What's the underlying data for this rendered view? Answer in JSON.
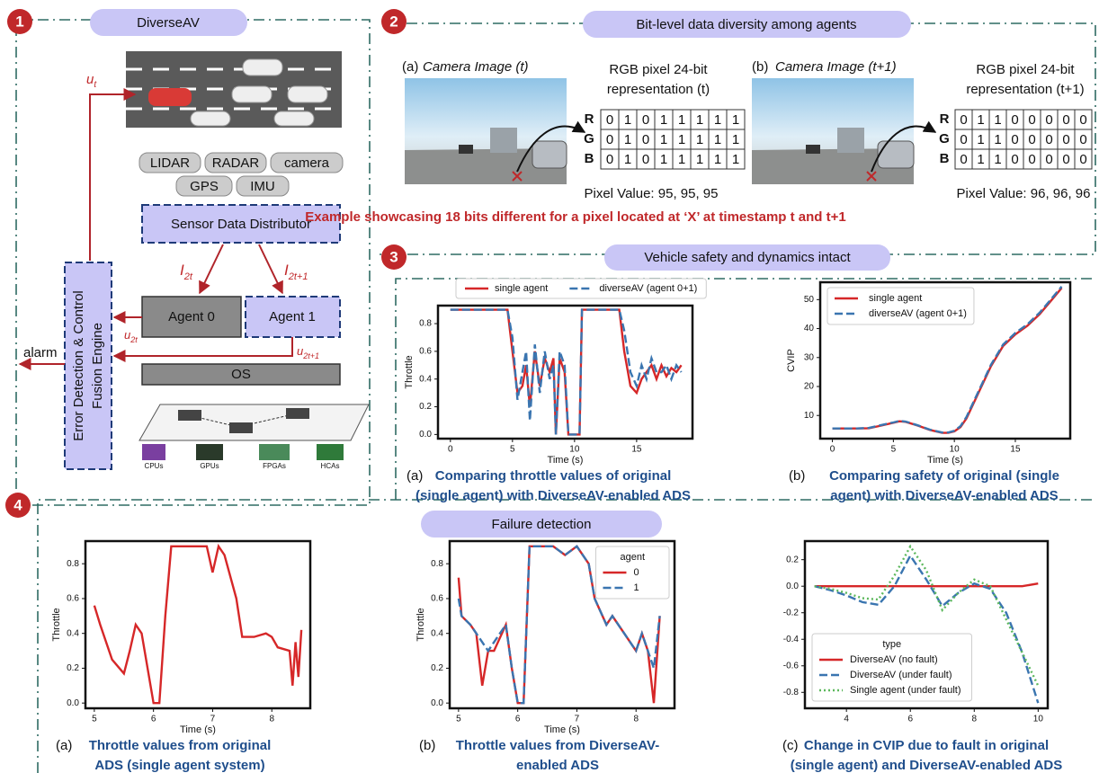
{
  "panel1": {
    "badge": "1",
    "title": "DiverseAV",
    "u_t": {
      "base": "u",
      "sub": "t"
    },
    "sensors": [
      "LIDAR",
      "RADAR",
      "camera",
      "GPS",
      "IMU"
    ],
    "distributor": "Sensor Data Distributor",
    "i_2t": {
      "base": "I",
      "sub": "2t"
    },
    "i_2t1": {
      "base": "I",
      "sub": "2t+1"
    },
    "agent0": "Agent 0",
    "agent1": "Agent 1",
    "u_2t": {
      "base": "u",
      "sub": "2t"
    },
    "u_2t1": {
      "base": "u",
      "sub": "2t+1"
    },
    "engine": [
      "Error Detection & Control",
      "Fusion Engine"
    ],
    "alarm": "alarm",
    "os": "OS",
    "hardware": [
      "CPUs",
      "GPUs",
      "FPGAs",
      "HCAs"
    ]
  },
  "panel2": {
    "badge": "2",
    "title": "Bit-level data diversity among agents",
    "a": {
      "label": "(a)",
      "image_caption": "Camera Image (t)",
      "repr": [
        "RGB pixel 24-bit",
        "representation (t)"
      ],
      "rows": [
        "R",
        "G",
        "B"
      ],
      "bits": [
        [
          0,
          1,
          0,
          1,
          1,
          1,
          1,
          1
        ],
        [
          0,
          1,
          0,
          1,
          1,
          1,
          1,
          1
        ],
        [
          0,
          1,
          0,
          1,
          1,
          1,
          1,
          1
        ]
      ],
      "pixel_value": "Pixel Value: 95, 95, 95"
    },
    "b": {
      "label": "(b)",
      "image_caption": "Camera Image (t+1)",
      "repr": [
        "RGB pixel 24-bit",
        "representation (t+1)"
      ],
      "rows": [
        "R",
        "G",
        "B"
      ],
      "bits": [
        [
          0,
          1,
          1,
          0,
          0,
          0,
          0,
          0
        ],
        [
          0,
          1,
          1,
          0,
          0,
          0,
          0,
          0
        ],
        [
          0,
          1,
          1,
          0,
          0,
          0,
          0,
          0
        ]
      ],
      "pixel_value": "Pixel Value: 96, 96, 96"
    },
    "caption": "Example showcasing 18 bits different for a pixel located at ‘X’ at timestamp t and t+1"
  },
  "panel3": {
    "badge": "3",
    "title": "Vehicle safety and dynamics intact"
  },
  "panel4": {
    "badge": "4",
    "title": "Failure detection"
  },
  "chart_data": [
    {
      "type": "line",
      "xlabel": "Time (s)",
      "ylabel": "Throttle",
      "legend": "above",
      "caption_label": "(a)",
      "caption": [
        "Comparing throttle values of original",
        "(single agent) with DiverseAV-enabled ADS"
      ],
      "xlim": [
        -1,
        19.5
      ],
      "xticks": [
        0,
        5,
        10,
        15
      ],
      "ylim": [
        -0.03,
        0.93
      ],
      "yticks": [
        {
          "value": 0,
          "label": "0.0"
        },
        0.2,
        0.4,
        0.6,
        0.8
      ],
      "x": [
        0,
        4.6,
        5.0,
        5.4,
        5.8,
        6.1,
        6.4,
        6.8,
        7.2,
        7.6,
        8.0,
        8.3,
        8.5,
        8.8,
        9.2,
        9.5,
        9.8,
        10.4,
        10.6,
        13.6,
        14.0,
        14.5,
        15.0,
        15.4,
        15.8,
        16.2,
        16.6,
        17.0,
        17.4,
        17.8,
        18.2,
        18.6
      ],
      "series": [
        {
          "name": "single agent",
          "color": "#d62728",
          "dash": "solid",
          "values": [
            0.9,
            0.9,
            0.6,
            0.3,
            0.35,
            0.5,
            0.2,
            0.6,
            0.35,
            0.55,
            0.45,
            0.55,
            0.0,
            0.55,
            0.45,
            0.0,
            0.0,
            0.0,
            0.9,
            0.9,
            0.6,
            0.35,
            0.3,
            0.4,
            0.45,
            0.5,
            0.4,
            0.5,
            0.42,
            0.48,
            0.45,
            0.5
          ]
        },
        {
          "name": "diverseAV (agent 0+1)",
          "color": "#3a75b0",
          "dash": "dashed",
          "values": [
            0.9,
            0.9,
            0.7,
            0.25,
            0.45,
            0.6,
            0.1,
            0.65,
            0.3,
            0.6,
            0.4,
            0.5,
            0.0,
            0.6,
            0.5,
            0.0,
            0.0,
            0.0,
            0.9,
            0.9,
            0.75,
            0.45,
            0.35,
            0.5,
            0.4,
            0.55,
            0.45,
            0.45,
            0.5,
            0.4,
            0.5,
            0.45
          ]
        }
      ]
    },
    {
      "type": "line",
      "xlabel": "Time (s)",
      "ylabel": "CVIP",
      "legend": "upper left",
      "caption_label": "(b)",
      "caption": [
        "Comparing safety of original (single",
        "agent) with DiverseAV-enabled ADS"
      ],
      "xlim": [
        -1,
        19.5
      ],
      "xticks": [
        0,
        5,
        10,
        15
      ],
      "ylim": [
        2,
        56
      ],
      "yticks": [
        10,
        20,
        30,
        40,
        50
      ],
      "x": [
        0,
        2,
        3,
        4,
        5,
        5.5,
        6,
        7,
        8,
        9,
        9.5,
        10,
        10.5,
        11,
        12,
        13,
        14,
        15,
        16,
        17,
        18,
        18.8
      ],
      "series": [
        {
          "name": "single agent",
          "color": "#d62728",
          "dash": "solid",
          "values": [
            5.5,
            5.5,
            5.6,
            6.5,
            7.5,
            8,
            7.8,
            6.5,
            5,
            4,
            4,
            4.5,
            6,
            9,
            18,
            27,
            34,
            38,
            41,
            45,
            50,
            54
          ]
        },
        {
          "name": "diverseAV (agent 0+1)",
          "color": "#3a75b0",
          "dash": "dashed",
          "values": [
            5.5,
            5.5,
            5.7,
            6.7,
            7.6,
            8.1,
            7.9,
            6.6,
            5.1,
            4.1,
            4.1,
            4.7,
            6.3,
            9.5,
            18.5,
            27.5,
            34.5,
            38.5,
            41.5,
            45.5,
            50.5,
            54.5
          ]
        }
      ]
    },
    {
      "type": "line",
      "xlabel": "Time (s)",
      "ylabel": "Throttle",
      "caption_label": "(a)",
      "caption": [
        "Throttle values from original",
        "ADS (single agent system)"
      ],
      "xlim": [
        4.85,
        8.65
      ],
      "xticks": [
        5,
        6,
        7,
        8
      ],
      "ylim": [
        -0.03,
        0.93
      ],
      "yticks": [
        {
          "value": 0,
          "label": "0.0"
        },
        0.2,
        0.4,
        0.6,
        0.8
      ],
      "x": [
        5.0,
        5.1,
        5.3,
        5.5,
        5.6,
        5.7,
        5.8,
        5.9,
        6.0,
        6.1,
        6.2,
        6.3,
        6.6,
        6.9,
        7.0,
        7.1,
        7.2,
        7.4,
        7.5,
        7.7,
        7.9,
        8.0,
        8.1,
        8.3,
        8.35,
        8.4,
        8.45,
        8.5
      ],
      "series": [
        {
          "color": "#d62728",
          "dash": "solid",
          "values": [
            0.56,
            0.45,
            0.25,
            0.17,
            0.3,
            0.45,
            0.4,
            0.2,
            0.0,
            0.0,
            0.5,
            0.9,
            0.9,
            0.9,
            0.75,
            0.9,
            0.85,
            0.6,
            0.38,
            0.38,
            0.4,
            0.38,
            0.32,
            0.3,
            0.1,
            0.35,
            0.15,
            0.42
          ]
        }
      ]
    },
    {
      "type": "line",
      "xlabel": "Time (s)",
      "ylabel": "Throttle",
      "legend": "upper right",
      "legend_title": "agent",
      "caption_label": "(b)",
      "caption": [
        "Throttle values from DiverseAV-",
        "enabled ADS"
      ],
      "xlim": [
        4.85,
        8.65
      ],
      "xticks": [
        5,
        6,
        7,
        8
      ],
      "ylim": [
        -0.03,
        0.93
      ],
      "yticks": [
        {
          "value": 0,
          "label": "0.0"
        },
        0.2,
        0.4,
        0.6,
        0.8
      ],
      "x": [
        5.0,
        5.05,
        5.2,
        5.3,
        5.4,
        5.5,
        5.6,
        5.8,
        5.9,
        6.0,
        6.1,
        6.2,
        6.3,
        6.6,
        6.8,
        7.0,
        7.2,
        7.3,
        7.5,
        7.6,
        7.8,
        8.0,
        8.1,
        8.2,
        8.3,
        8.4
      ],
      "series": [
        {
          "name": "0",
          "color": "#d62728",
          "dash": "solid",
          "values": [
            0.72,
            0.5,
            0.45,
            0.4,
            0.1,
            0.3,
            0.3,
            0.45,
            0.2,
            0.0,
            0.0,
            0.9,
            0.9,
            0.9,
            0.85,
            0.9,
            0.8,
            0.6,
            0.45,
            0.5,
            0.4,
            0.3,
            0.4,
            0.3,
            0.0,
            0.5
          ]
        },
        {
          "name": "1",
          "color": "#3a75b0",
          "dash": "dashed",
          "values": [
            0.6,
            0.5,
            0.45,
            0.4,
            0.35,
            0.3,
            0.35,
            0.45,
            0.2,
            0.0,
            0.0,
            0.9,
            0.9,
            0.9,
            0.85,
            0.9,
            0.8,
            0.6,
            0.45,
            0.5,
            0.4,
            0.3,
            0.4,
            0.3,
            0.2,
            0.5
          ]
        }
      ]
    },
    {
      "type": "line",
      "legend": "lower left",
      "legend_title": "type",
      "caption_label": "(c)",
      "caption": [
        "Change in CVIP due to fault in original",
        "(single agent) and DiverseAV-enabled ADS"
      ],
      "xlim": [
        2.7,
        10.3
      ],
      "xticks": [
        4,
        6,
        8,
        10
      ],
      "ylim": [
        -0.92,
        0.34
      ],
      "yticks": [
        0.2,
        {
          "value": 0,
          "label": "0.0"
        },
        -0.2,
        -0.4,
        -0.6,
        -0.8
      ],
      "x": [
        3,
        3.5,
        4,
        4.5,
        5,
        5.5,
        6,
        6.5,
        7,
        7.5,
        8,
        8.5,
        9,
        9.5,
        10
      ],
      "series": [
        {
          "name": "DiverseAV (no fault)",
          "color": "#d62728",
          "dash": "solid",
          "values": [
            0,
            0,
            0,
            0,
            0,
            0,
            0,
            0,
            0,
            0,
            0,
            0,
            0,
            0,
            0.02
          ]
        },
        {
          "name": "DiverseAV (under fault)",
          "color": "#3a75b0",
          "dash": "dashed",
          "values": [
            0,
            -0.03,
            -0.07,
            -0.12,
            -0.14,
            0.0,
            0.23,
            0.05,
            -0.15,
            -0.05,
            0.02,
            -0.02,
            -0.2,
            -0.5,
            -0.88
          ]
        },
        {
          "name": "Single agent (under fault)",
          "color": "#5cb85c",
          "dash": "dotted",
          "values": [
            0,
            -0.02,
            -0.05,
            -0.09,
            -0.1,
            0.08,
            0.3,
            0.12,
            -0.18,
            -0.05,
            0.05,
            0.0,
            -0.25,
            -0.5,
            -0.75
          ]
        }
      ]
    }
  ]
}
